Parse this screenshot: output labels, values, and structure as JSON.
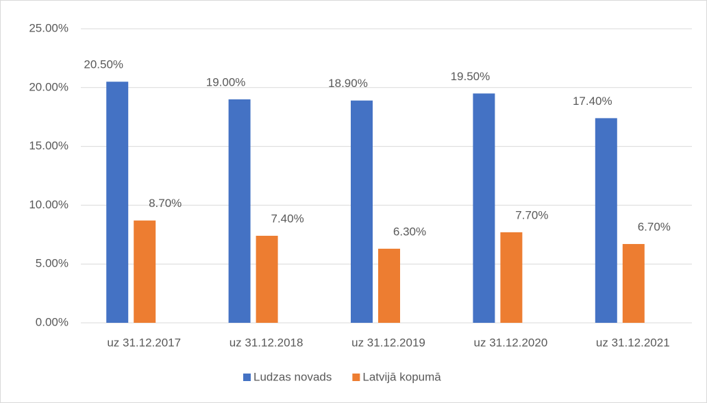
{
  "chart_data": {
    "type": "bar",
    "categories": [
      "uz 31.12.2017",
      "uz 31.12.2018",
      "uz 31.12.2019",
      "uz 31.12.2020",
      "uz 31.12.2021"
    ],
    "series": [
      {
        "name": "Ludzas novads",
        "color": "#4472c4",
        "values": [
          20.5,
          19.0,
          18.9,
          19.5,
          17.4
        ],
        "value_labels": [
          "20.50%",
          "19.00%",
          "18.90%",
          "19.50%",
          "17.40%"
        ]
      },
      {
        "name": "Latvijā kopumā",
        "color": "#ed7d31",
        "values": [
          8.7,
          7.4,
          6.3,
          7.7,
          6.7
        ],
        "value_labels": [
          "8.70%",
          "7.40%",
          "6.30%",
          "7.70%",
          "6.70%"
        ]
      }
    ],
    "ylim": [
      0,
      25
    ],
    "yticks": [
      {
        "value": 0,
        "label": "0.00%"
      },
      {
        "value": 5,
        "label": "5.00%"
      },
      {
        "value": 10,
        "label": "10.00%"
      },
      {
        "value": 15,
        "label": "15.00%"
      },
      {
        "value": 20,
        "label": "20.00%"
      },
      {
        "value": 25,
        "label": "25.00%"
      }
    ],
    "grid": true,
    "legend": "bottom"
  }
}
